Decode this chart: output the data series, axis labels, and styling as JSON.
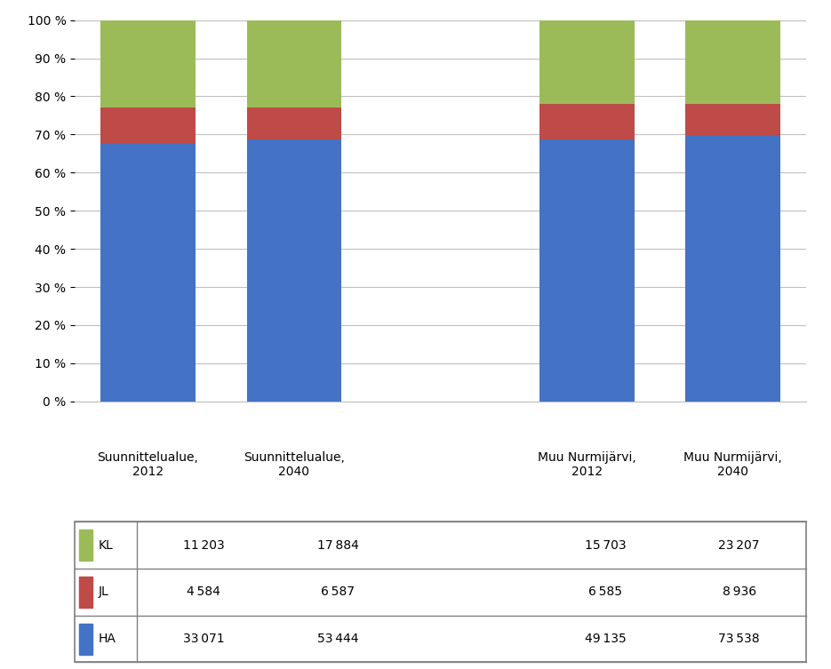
{
  "categories": [
    "Suunnittelualue,\n2012",
    "Suunnittelualue,\n2040",
    "",
    "Muu Nurmijärvi,\n2012",
    "Muu Nurmijärvi,\n2040"
  ],
  "HA": [
    33071,
    53444,
    0,
    49135,
    73538
  ],
  "JL": [
    4584,
    6587,
    0,
    6585,
    8936
  ],
  "KL": [
    11203,
    17884,
    0,
    15703,
    23207
  ],
  "HA_color": "#4472C4",
  "JL_color": "#BE4B48",
  "KL_color": "#9BBB59",
  "background_color": "#FFFFFF",
  "grid_color": "#BFBFBF",
  "table_HA": [
    33071,
    53444,
    49135,
    73538
  ],
  "table_JL": [
    4584,
    6587,
    6585,
    8936
  ],
  "table_KL": [
    11203,
    17884,
    15703,
    23207
  ],
  "tick_fontsize": 10,
  "bar_width": 0.65,
  "figsize": [
    9.35,
    7.53
  ],
  "dpi": 100
}
